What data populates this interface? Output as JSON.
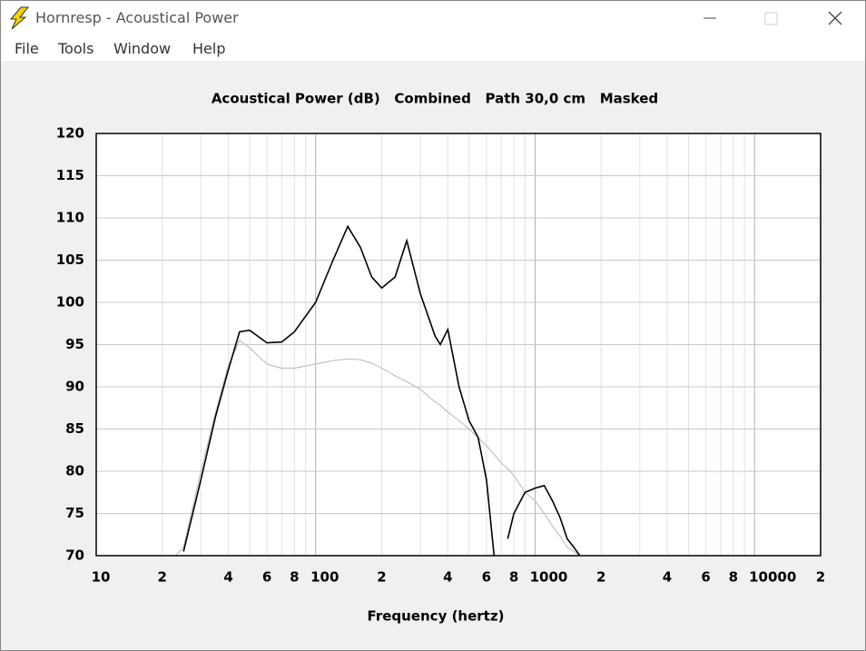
{
  "window": {
    "title": "Hornresp - Acoustical Power",
    "menu": [
      "File",
      "Tools",
      "Window",
      "Help"
    ]
  },
  "chart_data": {
    "type": "line",
    "title": "Acoustical Power (dB)   Combined   Path 30,0 cm   Masked",
    "x_label": "Frequency (hertz)",
    "x_log": true,
    "x": [
      23,
      25,
      30,
      35,
      40,
      45,
      50,
      60,
      70,
      80,
      100,
      120,
      140,
      160,
      180,
      200,
      230,
      260,
      300,
      350,
      370,
      400,
      450,
      500,
      550,
      600,
      650,
      700,
      750,
      800,
      900,
      1000,
      1100,
      1200,
      1300,
      1400,
      1500,
      1600
    ],
    "series": [
      {
        "color": "#000000",
        "values": [
          null,
          70.5,
          79,
          86.5,
          92,
          96.5,
          96.7,
          95.2,
          95.3,
          96.5,
          100,
          105,
          109,
          106.5,
          103,
          101.7,
          103,
          107.3,
          101,
          96,
          95,
          96.8,
          90,
          86,
          84,
          79,
          70,
          null,
          72,
          75,
          77.5,
          78,
          78.3,
          76.5,
          74.5,
          72,
          71,
          70
        ]
      },
      {
        "color": "#c0c0c0",
        "values": [
          70,
          71,
          80,
          87,
          92.5,
          95.5,
          94.6,
          92.7,
          92.2,
          92.2,
          92.7,
          93.1,
          93.3,
          93.2,
          92.8,
          92.2,
          91.3,
          90.6,
          89.7,
          88.2,
          87.8,
          87,
          86,
          85,
          84,
          83,
          82,
          81,
          80.3,
          79.5,
          77.5,
          76.5,
          75,
          73.5,
          72.3,
          71,
          70.5,
          70
        ]
      }
    ],
    "xlim": [
      10,
      20000
    ],
    "xticks": [
      10,
      {
        "value": 20,
        "label": "2"
      },
      {
        "value": 40,
        "label": "4"
      },
      {
        "value": 60,
        "label": "6"
      },
      {
        "value": 80,
        "label": "8"
      },
      100,
      {
        "value": 200,
        "label": "2"
      },
      {
        "value": 400,
        "label": "4"
      },
      {
        "value": 600,
        "label": "6"
      },
      {
        "value": 800,
        "label": "8"
      },
      1000,
      {
        "value": 2000,
        "label": "2"
      },
      {
        "value": 4000,
        "label": "4"
      },
      {
        "value": 6000,
        "label": "6"
      },
      {
        "value": 8000,
        "label": "8"
      },
      10000,
      {
        "value": 20000,
        "label": "2"
      }
    ],
    "x_minor_grid": [
      30,
      50,
      70,
      90,
      300,
      500,
      700,
      900,
      3000,
      5000,
      7000,
      9000
    ],
    "ylim": [
      70,
      120
    ],
    "yticks": [
      70,
      75,
      80,
      85,
      90,
      95,
      100,
      105,
      110,
      115,
      120
    ],
    "grid": true
  }
}
